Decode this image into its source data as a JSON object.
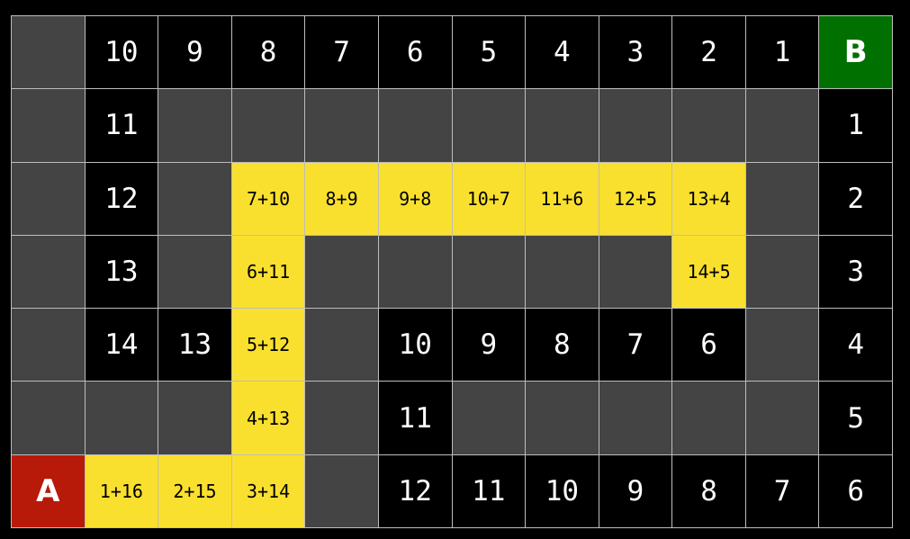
{
  "legend_types": {
    "w": "wall",
    "n": "distance",
    "p": "path",
    "a": "start",
    "b": "goal"
  },
  "colors": {
    "wall": "#444444",
    "distance": "#000000",
    "path": "#f9e02e",
    "start": "#b81a0a",
    "goal": "#007000"
  },
  "grid": [
    [
      [
        "w",
        ""
      ],
      [
        "n",
        "10"
      ],
      [
        "n",
        "9"
      ],
      [
        "n",
        "8"
      ],
      [
        "n",
        "7"
      ],
      [
        "n",
        "6"
      ],
      [
        "n",
        "5"
      ],
      [
        "n",
        "4"
      ],
      [
        "n",
        "3"
      ],
      [
        "n",
        "2"
      ],
      [
        "n",
        "1"
      ],
      [
        "b",
        "B"
      ]
    ],
    [
      [
        "w",
        ""
      ],
      [
        "n",
        "11"
      ],
      [
        "w",
        ""
      ],
      [
        "w",
        ""
      ],
      [
        "w",
        ""
      ],
      [
        "w",
        ""
      ],
      [
        "w",
        ""
      ],
      [
        "w",
        ""
      ],
      [
        "w",
        ""
      ],
      [
        "w",
        ""
      ],
      [
        "w",
        ""
      ],
      [
        "n",
        "1"
      ]
    ],
    [
      [
        "w",
        ""
      ],
      [
        "n",
        "12"
      ],
      [
        "w",
        ""
      ],
      [
        "p",
        "7+10"
      ],
      [
        "p",
        "8+9"
      ],
      [
        "p",
        "9+8"
      ],
      [
        "p",
        "10+7"
      ],
      [
        "p",
        "11+6"
      ],
      [
        "p",
        "12+5"
      ],
      [
        "p",
        "13+4"
      ],
      [
        "w",
        ""
      ],
      [
        "n",
        "2"
      ]
    ],
    [
      [
        "w",
        ""
      ],
      [
        "n",
        "13"
      ],
      [
        "w",
        ""
      ],
      [
        "p",
        "6+11"
      ],
      [
        "w",
        ""
      ],
      [
        "w",
        ""
      ],
      [
        "w",
        ""
      ],
      [
        "w",
        ""
      ],
      [
        "w",
        ""
      ],
      [
        "p",
        "14+5"
      ],
      [
        "w",
        ""
      ],
      [
        "n",
        "3"
      ]
    ],
    [
      [
        "w",
        ""
      ],
      [
        "n",
        "14"
      ],
      [
        "n",
        "13"
      ],
      [
        "p",
        "5+12"
      ],
      [
        "w",
        ""
      ],
      [
        "n",
        "10"
      ],
      [
        "n",
        "9"
      ],
      [
        "n",
        "8"
      ],
      [
        "n",
        "7"
      ],
      [
        "n",
        "6"
      ],
      [
        "w",
        ""
      ],
      [
        "n",
        "4"
      ]
    ],
    [
      [
        "w",
        ""
      ],
      [
        "w",
        ""
      ],
      [
        "w",
        ""
      ],
      [
        "p",
        "4+13"
      ],
      [
        "w",
        ""
      ],
      [
        "n",
        "11"
      ],
      [
        "w",
        ""
      ],
      [
        "w",
        ""
      ],
      [
        "w",
        ""
      ],
      [
        "w",
        ""
      ],
      [
        "w",
        ""
      ],
      [
        "n",
        "5"
      ]
    ],
    [
      [
        "a",
        "A"
      ],
      [
        "p",
        "1+16"
      ],
      [
        "p",
        "2+15"
      ],
      [
        "p",
        "3+14"
      ],
      [
        "w",
        ""
      ],
      [
        "n",
        "12"
      ],
      [
        "n",
        "11"
      ],
      [
        "n",
        "10"
      ],
      [
        "n",
        "9"
      ],
      [
        "n",
        "8"
      ],
      [
        "n",
        "7"
      ],
      [
        "n",
        "6"
      ]
    ]
  ]
}
